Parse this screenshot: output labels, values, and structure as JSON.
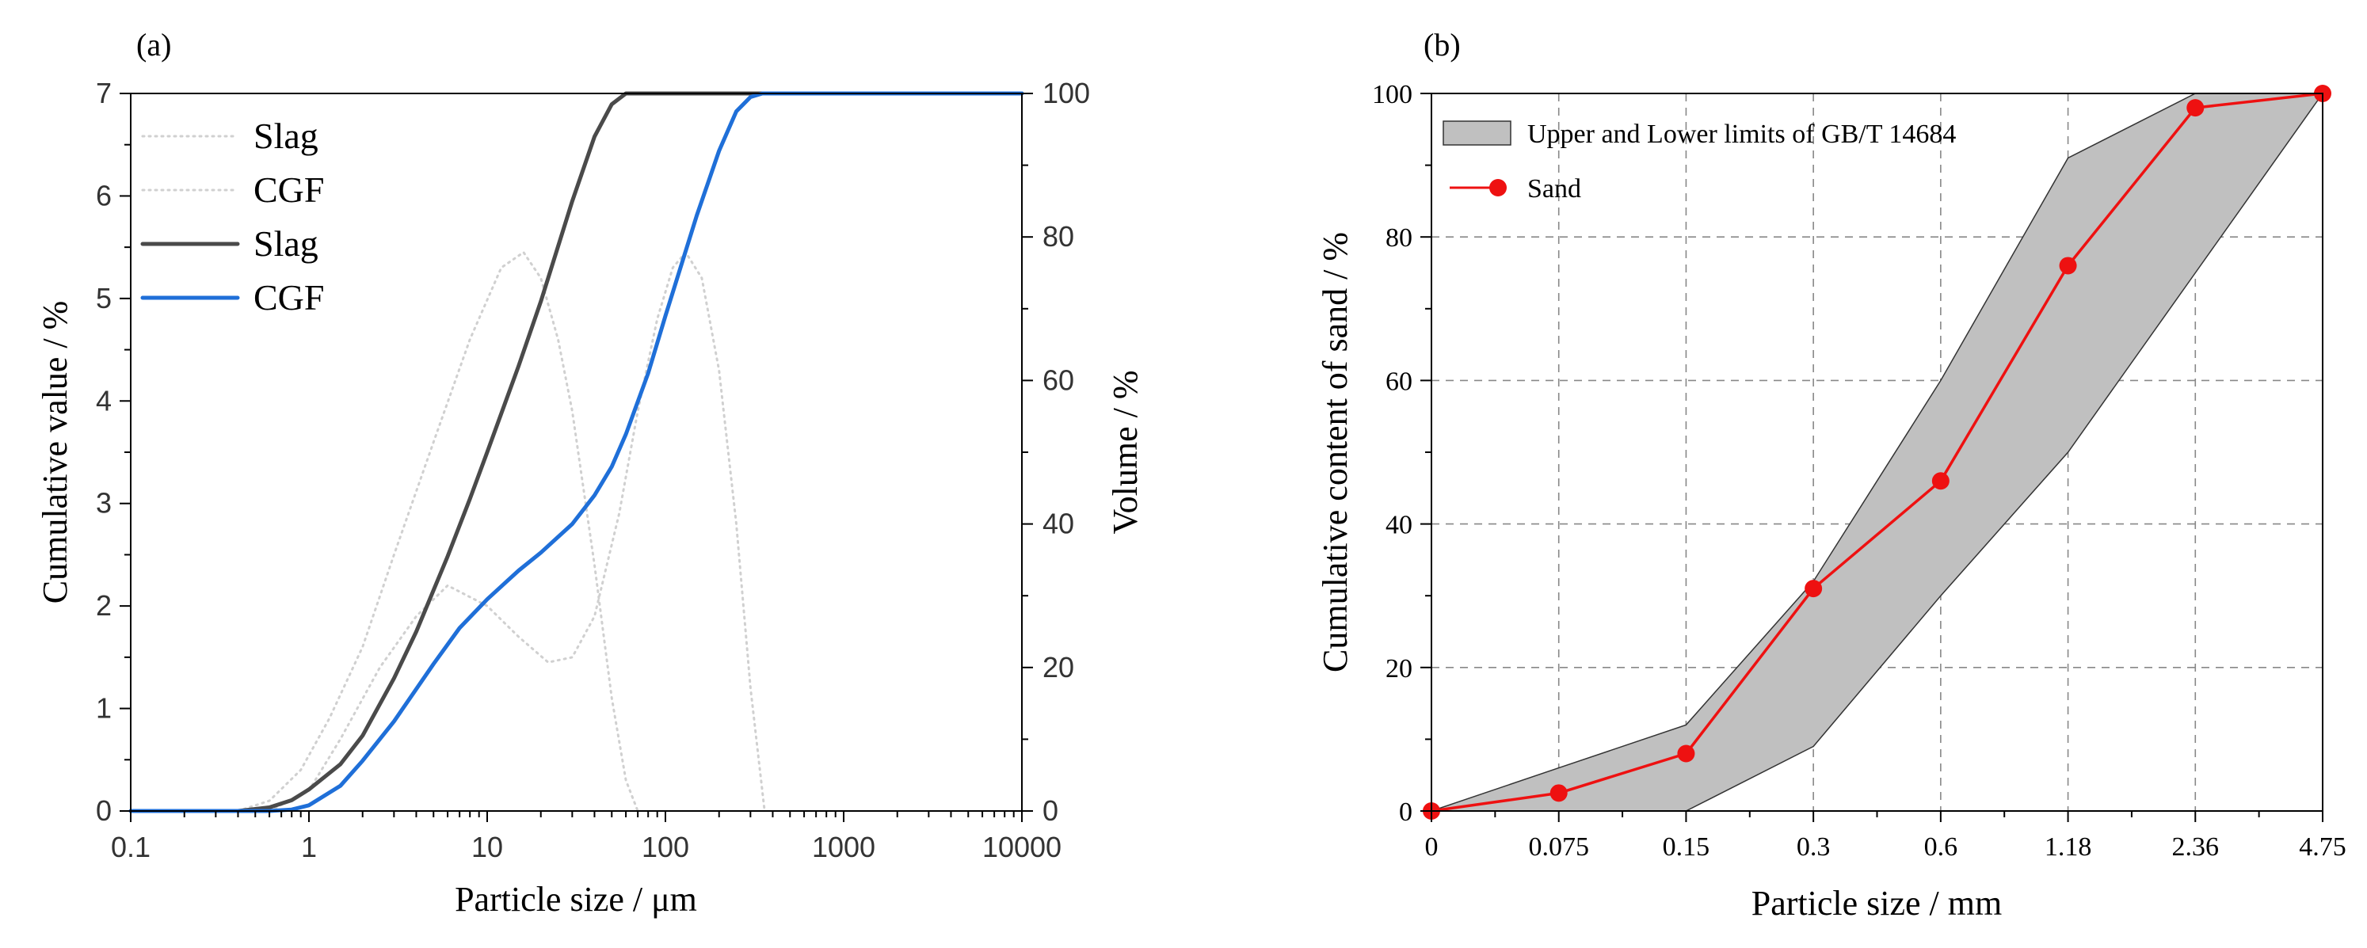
{
  "chart_data": [
    {
      "panel_label": "(a)",
      "type": "line",
      "xlabel": "Particle size / μm",
      "ylabel_left": "Cumulative value / %",
      "ylabel_right": "Volume / %",
      "x_scale": "log",
      "xlim": [
        0.1,
        10000
      ],
      "x_ticks": [
        0.1,
        1,
        10,
        100,
        1000,
        10000
      ],
      "x_tick_labels": [
        "0.1",
        "1",
        "10",
        "100",
        "1000",
        "10000"
      ],
      "ylim_left": [
        0,
        7
      ],
      "y_ticks_left": [
        "0",
        "1",
        "2",
        "3",
        "4",
        "5",
        "6",
        "7"
      ],
      "ylim_right": [
        0,
        100
      ],
      "y_ticks_right": [
        "0",
        "20",
        "40",
        "60",
        "80",
        "100"
      ],
      "legend_position": "top-left",
      "legend": [
        "Slag",
        "CGF",
        "Slag",
        "CGF"
      ],
      "series": [
        {
          "name": "Slag",
          "kind": "distribution",
          "axis": "left",
          "style": "dotted",
          "color": "#d0d0d0",
          "x": [
            0.4,
            0.6,
            0.9,
            1.3,
            2,
            3,
            5,
            8,
            12,
            16,
            20,
            25,
            30,
            40,
            50,
            60,
            70
          ],
          "values": [
            0,
            0.1,
            0.4,
            0.9,
            1.6,
            2.5,
            3.6,
            4.6,
            5.3,
            5.45,
            5.2,
            4.6,
            3.9,
            2.4,
            1.1,
            0.3,
            0
          ]
        },
        {
          "name": "CGF",
          "kind": "distribution",
          "axis": "left",
          "style": "dotted",
          "color": "#d0d0d0",
          "x": [
            0.6,
            1,
            1.5,
            2.5,
            4,
            6,
            10,
            15,
            22,
            30,
            40,
            55,
            70,
            90,
            110,
            130,
            160,
            200,
            250,
            300,
            360
          ],
          "values": [
            0,
            0.2,
            0.7,
            1.4,
            1.9,
            2.2,
            2.0,
            1.7,
            1.45,
            1.5,
            1.9,
            2.9,
            3.9,
            4.8,
            5.3,
            5.45,
            5.2,
            4.3,
            2.8,
            1.2,
            0
          ]
        },
        {
          "name": "Slag",
          "kind": "cumulative",
          "axis": "right",
          "style": "solid",
          "color": "#4a4a4a",
          "x": [
            0.1,
            0.4,
            0.6,
            0.8,
            1,
            1.5,
            2,
            3,
            4,
            6,
            8,
            10,
            15,
            20,
            30,
            40,
            50,
            60,
            10000
          ],
          "values": [
            0,
            0,
            0.5,
            1.5,
            3,
            6.5,
            10.5,
            18.5,
            25,
            35.5,
            43.5,
            50,
            62,
            71,
            85,
            94,
            98.5,
            100,
            100
          ]
        },
        {
          "name": "CGF",
          "kind": "cumulative",
          "axis": "right",
          "style": "solid",
          "color": "#1f6fd8",
          "x": [
            0.1,
            0.6,
            0.8,
            1,
            1.5,
            2,
            3,
            5,
            7,
            10,
            15,
            20,
            30,
            40,
            50,
            60,
            80,
            100,
            150,
            200,
            250,
            300,
            350,
            10000
          ],
          "values": [
            0,
            0,
            0.2,
            0.8,
            3.5,
            7,
            12.5,
            20.5,
            25.5,
            29.5,
            33.5,
            36,
            40,
            44,
            48,
            52.5,
            61,
            69,
            83,
            92,
            97.5,
            99.5,
            100,
            100
          ]
        }
      ]
    },
    {
      "panel_label": "(b)",
      "type": "line",
      "xlabel": "Particle size / mm",
      "ylabel": "Cumulative content of sand / %",
      "categories": [
        "0",
        "0.075",
        "0.15",
        "0.3",
        "0.6",
        "1.18",
        "2.36",
        "4.75"
      ],
      "ylim": [
        0,
        100
      ],
      "y_ticks": [
        "0",
        "20",
        "40",
        "60",
        "80",
        "100"
      ],
      "grid": true,
      "legend_position": "top-left",
      "band": {
        "name": "Upper and Lower limits of GB/T 14684",
        "upper": [
          0,
          6,
          12,
          32,
          60,
          91,
          100,
          100
        ],
        "lower": [
          0,
          0,
          0,
          9,
          30,
          50,
          75,
          100
        ],
        "color": "#c0c0c0"
      },
      "series": [
        {
          "name": "Sand",
          "color": "#ee1111",
          "values": [
            0,
            2.5,
            8,
            31,
            46,
            76,
            98,
            100
          ]
        }
      ]
    }
  ]
}
